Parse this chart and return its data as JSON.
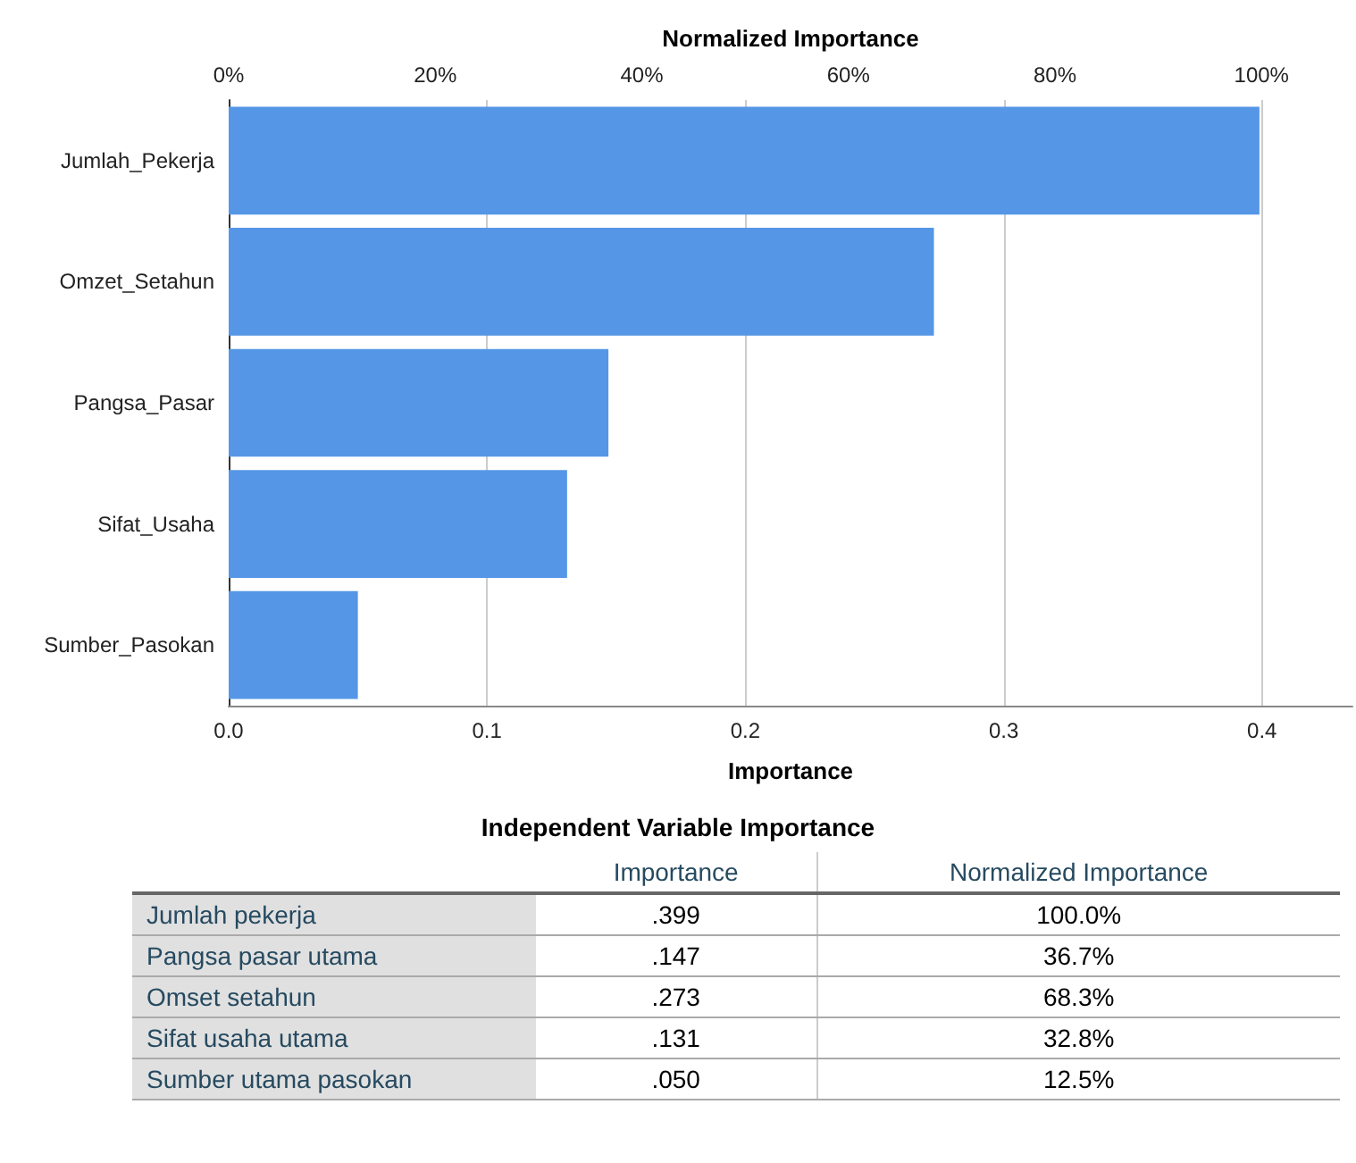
{
  "chart_data": [
    {
      "type": "bar",
      "orientation": "horizontal",
      "xlabel": "Importance",
      "x2label": "Normalized Importance",
      "categories": [
        "Jumlah_Pekerja",
        "Omzet_Setahun",
        "Pangsa_Pasar",
        "Sifat_Usaha",
        "Sumber_Pasokan"
      ],
      "series": [
        {
          "color": "#5596e6",
          "values": [
            0.399,
            0.273,
            0.147,
            0.131,
            0.05
          ]
        }
      ],
      "xlim": [
        0,
        0.435
      ],
      "xticks": [
        {
          "value": 0,
          "label": "0.0"
        },
        {
          "value": 0.1,
          "label": "0.1"
        },
        {
          "value": 0.2,
          "label": "0.2"
        },
        {
          "value": 0.3,
          "label": "0.3"
        },
        {
          "value": 0.4,
          "label": "0.4"
        }
      ],
      "x2lim": [
        0,
        108.8
      ],
      "x2ticks": [
        {
          "value": 0,
          "label": "0%"
        },
        {
          "value": 20,
          "label": "20%"
        },
        {
          "value": 40,
          "label": "40%"
        },
        {
          "value": 60,
          "label": "60%"
        },
        {
          "value": 80,
          "label": "80%"
        },
        {
          "value": 100,
          "label": "100%"
        }
      ],
      "grid": "x"
    },
    {
      "type": "other",
      "title": "Independent Variable Importance",
      "categories": [
        "Jumlah pekerja",
        "Pangsa pasar utama",
        "Omset setahun",
        "Sifat usaha utama",
        "Sumber utama pasokan"
      ],
      "annotations": [
        "Importance",
        "Normalized Importance",
        ".399",
        "100.0%",
        ".147",
        "36.7%",
        ".273",
        "68.3%",
        ".131",
        "32.8%",
        ".050",
        "12.5%"
      ]
    }
  ]
}
